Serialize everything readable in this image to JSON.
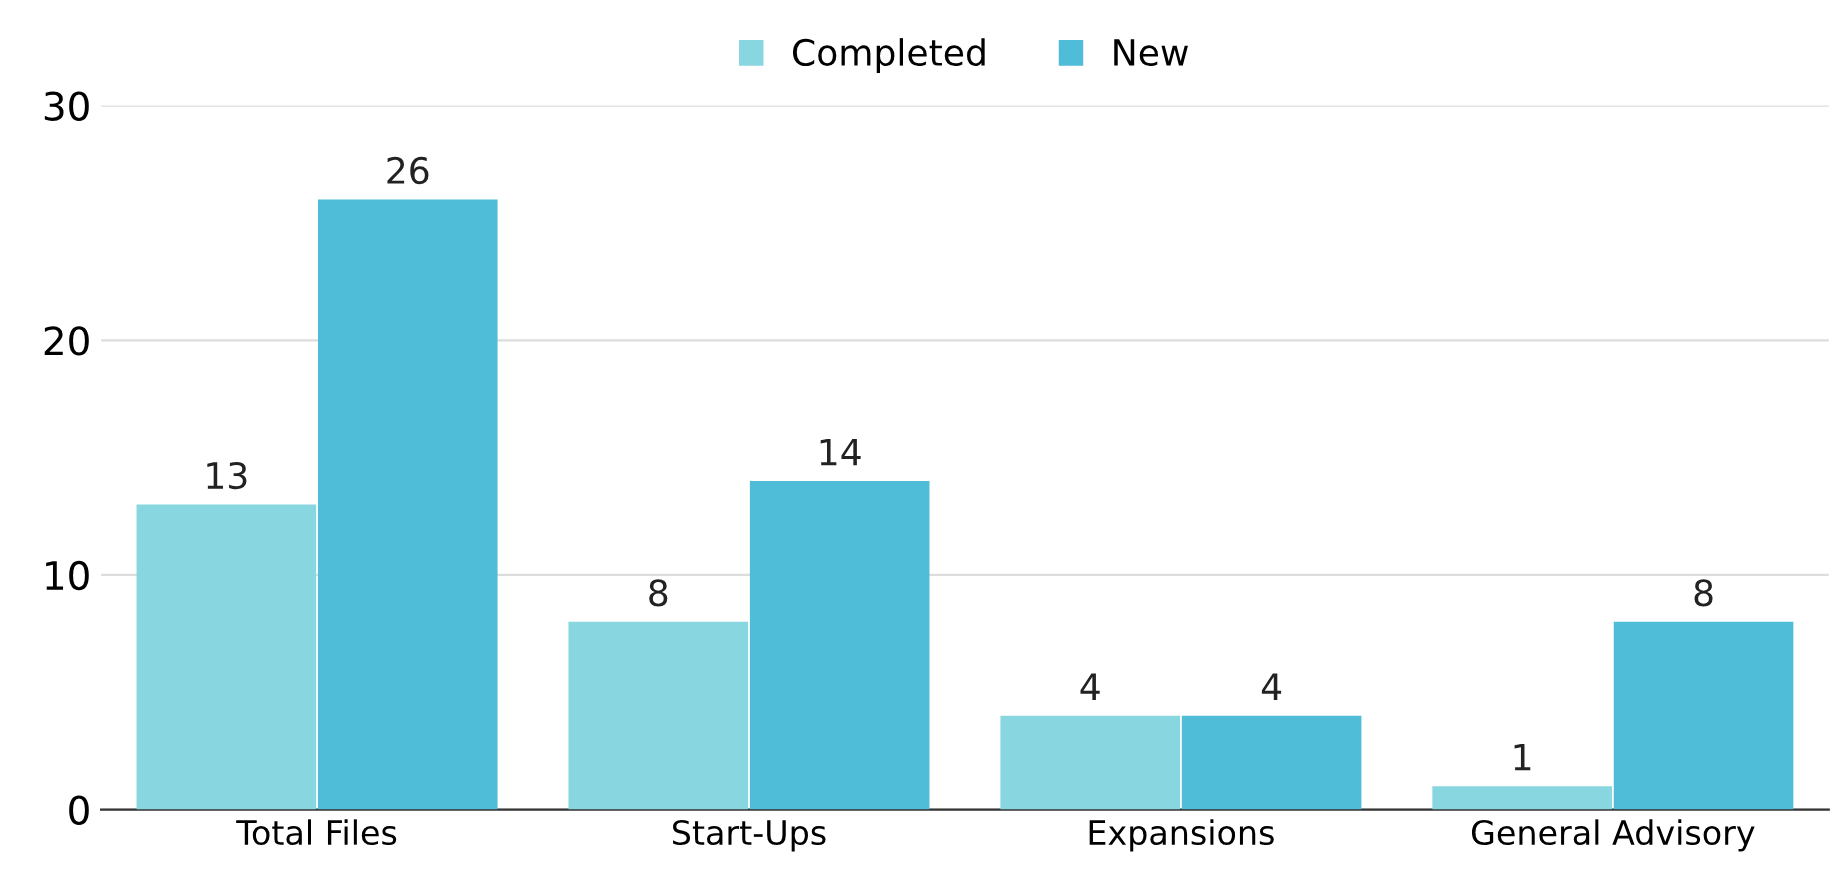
{
  "chart_data": {
    "type": "bar",
    "categories": [
      "Total Files",
      "Start-Ups",
      "Expansions",
      "General Advisory"
    ],
    "series": [
      {
        "name": "Completed",
        "color": "#87d6e0",
        "values": [
          13,
          8,
          4,
          1
        ]
      },
      {
        "name": "New",
        "color": "#4fbcd8",
        "values": [
          26,
          14,
          4,
          8
        ]
      }
    ],
    "ylim": [
      0,
      30
    ],
    "yticks": [
      0,
      10,
      20,
      30
    ],
    "grid": "y",
    "legend": "top",
    "data_labels": true
  }
}
